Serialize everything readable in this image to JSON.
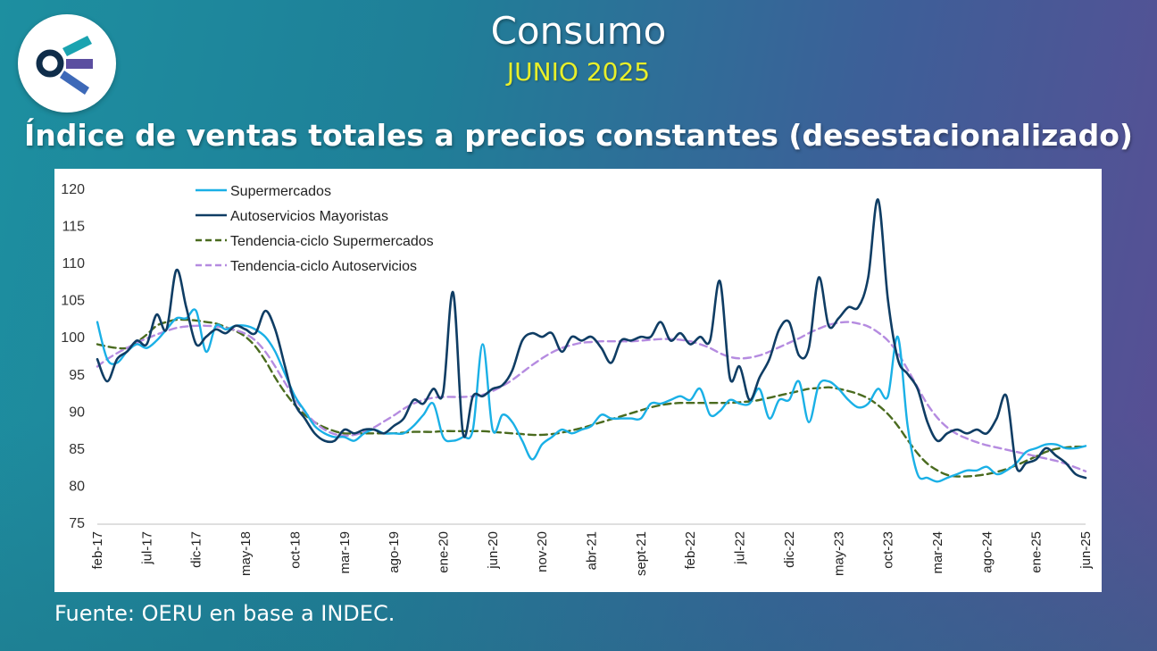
{
  "header": {
    "title": "Consumo",
    "subtitle": "JUNIO 2025"
  },
  "chart_title": "Índice de ventas totales a precios constantes (desestacionalizado)",
  "source": "Fuente: OERU en base a INDEC.",
  "colors": {
    "supermercados": "#1ab0e6",
    "autoservicios": "#0f3d64",
    "tendencia_super": "#4a6b1f",
    "tendencia_auto": "#b58be0"
  },
  "chart_data": {
    "type": "line",
    "title": "Índice de ventas totales a precios constantes (desestacionalizado)",
    "xlabel": "",
    "ylabel": "",
    "ylim": [
      75,
      120
    ],
    "yticks": [
      75,
      80,
      85,
      90,
      95,
      100,
      105,
      110,
      115,
      120
    ],
    "x_start": "feb-17",
    "x_end": "jun-25",
    "n_points": 101,
    "x_tick_labels": [
      "feb-17",
      "jul-17",
      "dic-17",
      "may-18",
      "oct-18",
      "mar-19",
      "ago-19",
      "ene-20",
      "jun-20",
      "nov-20",
      "abr-21",
      "sept-21",
      "feb-22",
      "jul-22",
      "dic-22",
      "may-23",
      "oct-23",
      "mar-24",
      "ago-24",
      "ene-25",
      "jun-25"
    ],
    "legend_position": "top-left",
    "series": [
      {
        "name": "Supermercados",
        "style": "solid",
        "values": [
          102,
          97,
          96.5,
          98,
          99,
          98.5,
          99.5,
          101,
          102.5,
          102.5,
          103.5,
          98,
          101.5,
          101,
          101.5,
          101.5,
          101,
          100,
          98,
          95,
          92,
          90,
          88,
          87,
          86.5,
          86.5,
          86,
          87,
          87.5,
          87,
          87,
          87,
          88,
          89.5,
          91,
          86.5,
          86,
          86.5,
          87.5,
          99,
          87.5,
          89.5,
          88.5,
          86,
          83.5,
          85.5,
          86.5,
          87.5,
          87,
          87.5,
          88,
          89.5,
          89,
          89,
          89,
          89,
          91,
          91,
          91.5,
          92,
          91.5,
          93,
          89.5,
          90,
          91.5,
          91,
          91,
          93,
          89,
          91.5,
          91.5,
          94,
          88.5,
          93.5,
          94,
          93,
          91.5,
          90.5,
          91,
          93,
          92,
          100,
          88,
          81.5,
          81,
          80.5,
          81,
          81.5,
          82,
          82,
          82.5,
          81.5,
          82,
          83,
          84.5,
          85,
          85.5,
          85.5,
          85,
          85,
          85.3
        ]
      },
      {
        "name": "Autoservicios Mayoristas",
        "style": "solid",
        "values": [
          97,
          94,
          97,
          98,
          99.5,
          99,
          103,
          101,
          109,
          104,
          99,
          100,
          101,
          100.5,
          101.5,
          101,
          100.5,
          103.5,
          101,
          96,
          91,
          89,
          87,
          86,
          86,
          87.5,
          87,
          87.5,
          87.5,
          87,
          88,
          89,
          91.5,
          91,
          93,
          92.5,
          106,
          87,
          92,
          92,
          93,
          93.5,
          95.5,
          99.5,
          100.5,
          100,
          100.5,
          98,
          100,
          99.5,
          100,
          98.5,
          96.5,
          99.5,
          99.5,
          100,
          100,
          102,
          99.5,
          100.5,
          99,
          100,
          99.5,
          107.5,
          94.5,
          96,
          91.5,
          94.5,
          97,
          101,
          102,
          97.5,
          98.5,
          108,
          101.5,
          102.5,
          104,
          104,
          108,
          118.5,
          105,
          97,
          95,
          93,
          88.5,
          86,
          87,
          87.5,
          87,
          87.5,
          87,
          89,
          92,
          82.5,
          83,
          83.5,
          85,
          84,
          83,
          81.5,
          81
        ]
      },
      {
        "name": "Tendencia-ciclo Supermercados",
        "style": "dashed",
        "values": [
          99,
          98.7,
          98.5,
          98.5,
          99.3,
          100.3,
          101.5,
          102,
          102.3,
          102.3,
          102.2,
          102,
          101.8,
          101.3,
          100.8,
          100,
          98.7,
          96.8,
          94.5,
          92.5,
          90.8,
          89.5,
          88.5,
          87.8,
          87.3,
          87,
          87,
          87,
          87,
          87,
          87,
          87.1,
          87.2,
          87.2,
          87.2,
          87.3,
          87.3,
          87.3,
          87.3,
          87.3,
          87.2,
          87.1,
          87,
          86.9,
          86.8,
          86.8,
          86.9,
          87.1,
          87.4,
          87.7,
          88.1,
          88.5,
          88.9,
          89.3,
          89.7,
          90.1,
          90.5,
          90.8,
          91,
          91.1,
          91.1,
          91.1,
          91.1,
          91.1,
          91.1,
          91.2,
          91.3,
          91.5,
          91.8,
          92.1,
          92.4,
          92.7,
          93,
          93.1,
          93.2,
          93,
          92.7,
          92.3,
          91.7,
          90.8,
          89.6,
          88,
          86.1,
          84.3,
          82.9,
          82,
          81.4,
          81.2,
          81.2,
          81.3,
          81.5,
          81.8,
          82.2,
          82.7,
          83.3,
          83.9,
          84.5,
          84.9,
          85.1,
          85.2,
          85.2
        ]
      },
      {
        "name": "Tendencia-ciclo Autoservicios",
        "style": "dashed",
        "values": [
          96,
          97,
          97.8,
          98.5,
          99.2,
          99.8,
          100.3,
          100.8,
          101.2,
          101.4,
          101.5,
          101.5,
          101.4,
          101.2,
          100.9,
          100.4,
          99.5,
          98,
          96,
          93.8,
          91.7,
          89.9,
          88.5,
          87.5,
          86.9,
          86.7,
          86.8,
          87.2,
          87.8,
          88.6,
          89.4,
          90.3,
          91,
          91.5,
          91.8,
          91.9,
          91.9,
          91.9,
          92,
          92.2,
          92.7,
          93.4,
          94.2,
          95.2,
          96.2,
          97.1,
          97.9,
          98.5,
          98.9,
          99.2,
          99.3,
          99.4,
          99.4,
          99.4,
          99.4,
          99.5,
          99.6,
          99.7,
          99.7,
          99.6,
          99.4,
          99,
          98.5,
          97.8,
          97.3,
          97.1,
          97.2,
          97.5,
          98,
          98.6,
          99.2,
          99.8,
          100.5,
          101.1,
          101.6,
          101.9,
          102,
          101.8,
          101.4,
          100.6,
          99.5,
          97.8,
          95.6,
          93.2,
          90.9,
          89.1,
          87.8,
          86.9,
          86.3,
          85.8,
          85.4,
          85.1,
          84.8,
          84.5,
          84.2,
          83.9,
          83.6,
          83.3,
          82.9,
          82.4,
          81.9
        ]
      }
    ]
  }
}
